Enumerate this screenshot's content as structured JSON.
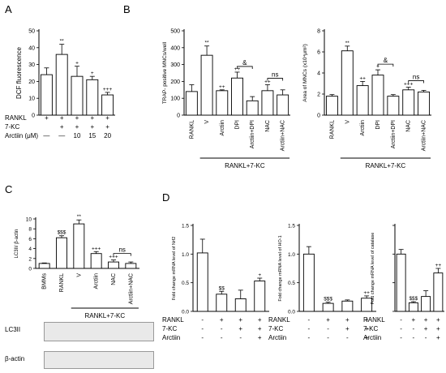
{
  "panels": {
    "A": "A",
    "B": "B",
    "C": "C",
    "D": "D"
  },
  "chart_data": [
    {
      "id": "A",
      "type": "bar",
      "ylabel": "DCF fluorescence",
      "ylim": [
        0,
        50
      ],
      "yticks": [
        "0",
        "10",
        "20",
        "30",
        "40",
        "50"
      ],
      "values": [
        24,
        36,
        23,
        21,
        12
      ],
      "errors": [
        4,
        6,
        6,
        2,
        1.5
      ],
      "annotations": [
        "",
        "**",
        "+",
        "+",
        "+++"
      ],
      "conditions": [
        {
          "label": "RANKL",
          "marks": [
            "+",
            "+",
            "+",
            "+",
            "+"
          ]
        },
        {
          "label": "7-KC",
          "marks": [
            "",
            "+",
            "+",
            "+",
            "+"
          ]
        },
        {
          "label": "Arctiin (μM)",
          "marks": [
            "—",
            "—",
            "10",
            "15",
            "20"
          ]
        }
      ]
    },
    {
      "id": "B1",
      "type": "bar",
      "ylabel": "TRAP- positive MNCs/well",
      "ylim": [
        0,
        500
      ],
      "yticks": [
        "0",
        "100",
        "200",
        "300",
        "400",
        "500"
      ],
      "categories": [
        "RANKL",
        "V",
        "Arctiin",
        "DPI",
        "Arctiin+DPI",
        "NAC",
        "Arctiin+NAC"
      ],
      "values": [
        140,
        355,
        145,
        220,
        85,
        145,
        120
      ],
      "errors": [
        40,
        55,
        5,
        35,
        25,
        35,
        30
      ],
      "annotations": [
        "",
        "**",
        "++",
        "++",
        "",
        "++",
        ""
      ],
      "brackets": [
        {
          "from": 3,
          "to": 4,
          "label": "&"
        },
        {
          "from": 5,
          "to": 6,
          "label": "ns"
        }
      ],
      "group": {
        "label": "RANKL+7-KC",
        "from": 1,
        "to": 6
      }
    },
    {
      "id": "B2",
      "type": "bar",
      "ylabel": "Area of MNCs (x10⁴μm²)",
      "ylim": [
        0,
        8
      ],
      "yticks": [
        "0",
        "2",
        "4",
        "6",
        "8"
      ],
      "categories": [
        "RANKL",
        "V",
        "Arctiin",
        "DPI",
        "Arctiin+DPI",
        "NAC",
        "Arctiin+NAC"
      ],
      "values": [
        1.8,
        6.1,
        2.8,
        3.8,
        1.8,
        2.4,
        2.2
      ],
      "errors": [
        0.15,
        0.45,
        0.4,
        0.5,
        0.15,
        0.25,
        0.15
      ],
      "annotations": [
        "",
        "**",
        "++",
        "+",
        "",
        "+++",
        ""
      ],
      "brackets": [
        {
          "from": 3,
          "to": 4,
          "label": "&"
        },
        {
          "from": 5,
          "to": 6,
          "label": "ns"
        }
      ],
      "group": {
        "label": "RANKL+7-KC",
        "from": 1,
        "to": 6
      }
    },
    {
      "id": "C",
      "type": "bar",
      "ylabel": "LC3II/ β-actin",
      "ylim": [
        0,
        10
      ],
      "yticks": [
        "0",
        "2",
        "4",
        "6",
        "8",
        "10"
      ],
      "categories": [
        "BMMs",
        "RANKL",
        "V",
        "Arctiin",
        "NAC",
        "Arctiin+NAC"
      ],
      "values": [
        1,
        6.2,
        9,
        3,
        1.3,
        1
      ],
      "errors": [
        0.1,
        0.4,
        0.8,
        0.4,
        0.4,
        0.3
      ],
      "annotations": [
        "",
        "$$$",
        "**",
        "+++",
        "+++",
        ""
      ],
      "brackets": [
        {
          "from": 4,
          "to": 5,
          "label": "ns"
        }
      ],
      "group": {
        "label": "RANKL+7-KC",
        "from": 2,
        "to": 5
      }
    },
    {
      "id": "D1",
      "type": "bar",
      "ylabel": "Fold change mRNA level of Nrf2",
      "ylim": [
        0,
        1.5
      ],
      "yticks": [
        "0.0",
        "0.5",
        "1.0",
        "1.5"
      ],
      "values": [
        1.02,
        0.3,
        0.22,
        0.53
      ],
      "errors": [
        0.24,
        0.05,
        0.15,
        0.05
      ],
      "annotations": [
        "",
        "$$",
        "",
        "+"
      ],
      "conditions": [
        {
          "label": "RANKL",
          "marks": [
            "-",
            "+",
            "+",
            "+"
          ]
        },
        {
          "label": "7-KC",
          "marks": [
            "-",
            "-",
            "+",
            "+"
          ]
        },
        {
          "label": "Arctiin",
          "marks": [
            "-",
            "-",
            "-",
            "+"
          ]
        }
      ]
    },
    {
      "id": "D2",
      "type": "bar",
      "ylabel": "Fold change mRNA level of HO-1",
      "ylim": [
        0,
        1.5
      ],
      "yticks": [
        "0.0",
        "0.5",
        "1.0",
        "1.5"
      ],
      "values": [
        1,
        0.14,
        0.18,
        0.23
      ],
      "errors": [
        0.13,
        0.02,
        0.02,
        0.04
      ],
      "annotations": [
        "",
        "$$$",
        "",
        "++"
      ],
      "conditions": [
        {
          "label": "RANKL",
          "marks": [
            "-",
            "+",
            "+",
            "+"
          ]
        },
        {
          "label": "7-KC",
          "marks": [
            "-",
            "-",
            "+",
            "+"
          ]
        },
        {
          "label": "Arctiin",
          "marks": [
            "-",
            "-",
            "-",
            "+"
          ]
        }
      ]
    },
    {
      "id": "D3",
      "type": "bar",
      "ylabel": "Fold change mRNA level of catalase",
      "ylim": [
        0,
        1.5
      ],
      "yticks": [
        "0.0",
        "0.5",
        "1.0",
        "1.5"
      ],
      "values": [
        1,
        0.15,
        0.26,
        0.67
      ],
      "errors": [
        0.08,
        0.02,
        0.1,
        0.08
      ],
      "annotations": [
        "",
        "$$$",
        "",
        "++"
      ],
      "conditions": [
        {
          "label": "RANKL",
          "marks": [
            "-",
            "+",
            "+",
            "+"
          ]
        },
        {
          "label": "7-KC",
          "marks": [
            "-",
            "-",
            "+",
            "+"
          ]
        },
        {
          "label": "Arctiin",
          "marks": [
            "-",
            "-",
            "-",
            "+"
          ]
        }
      ]
    }
  ],
  "blots": [
    {
      "label": "LC3II"
    },
    {
      "label": "β-actin"
    }
  ]
}
